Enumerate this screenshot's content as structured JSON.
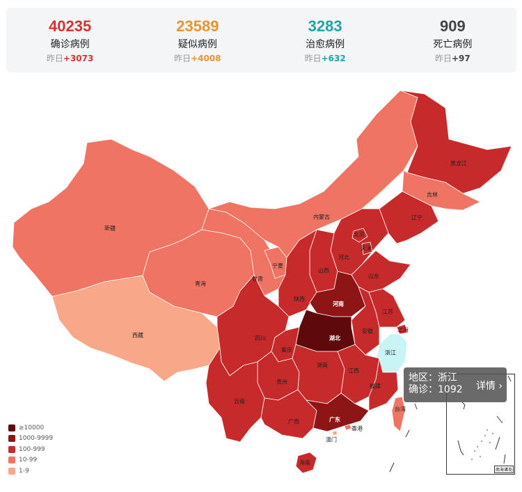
{
  "stats": [
    {
      "key": "confirmed",
      "value": "40235",
      "label": "确诊病例",
      "delta_prefix": "昨日",
      "delta": "+3073",
      "color": "#d4342f"
    },
    {
      "key": "suspected",
      "value": "23589",
      "label": "疑似病例",
      "delta_prefix": "昨日",
      "delta": "+4008",
      "color": "#e7952f"
    },
    {
      "key": "cured",
      "value": "3283",
      "label": "治愈病例",
      "delta_prefix": "昨日",
      "delta": "+632",
      "color": "#1fa3a3"
    },
    {
      "key": "dead",
      "value": "909",
      "label": "死亡病例",
      "delta_prefix": "昨日",
      "delta": "+97",
      "color": "#333333"
    }
  ],
  "legend": [
    {
      "label": "≥10000",
      "color": "#5e0a0a"
    },
    {
      "label": "1000-9999",
      "color": "#8e1515"
    },
    {
      "label": "100-999",
      "color": "#c62a2a"
    },
    {
      "label": "10-99",
      "color": "#f07463"
    },
    {
      "label": "1-9",
      "color": "#f8a888"
    }
  ],
  "provinces": [
    {
      "name": "黑龙江",
      "level": "100-999"
    },
    {
      "name": "吉林",
      "level": "10-99"
    },
    {
      "name": "辽宁",
      "level": "100-999"
    },
    {
      "name": "内蒙古",
      "level": "10-99"
    },
    {
      "name": "北京",
      "level": "100-999"
    },
    {
      "name": "天津",
      "level": "100-999"
    },
    {
      "name": "河北",
      "level": "100-999"
    },
    {
      "name": "山西",
      "level": "100-999"
    },
    {
      "name": "山东",
      "level": "100-999"
    },
    {
      "name": "宁夏",
      "level": "10-99"
    },
    {
      "name": "甘肃",
      "level": "10-99"
    },
    {
      "name": "新疆",
      "level": "10-99"
    },
    {
      "name": "青海",
      "level": "10-99"
    },
    {
      "name": "西藏",
      "level": "1-9"
    },
    {
      "name": "陕西",
      "level": "100-999"
    },
    {
      "name": "河南",
      "level": "1000-9999"
    },
    {
      "name": "江苏",
      "level": "100-999"
    },
    {
      "name": "上海",
      "level": "100-999"
    },
    {
      "name": "安徽",
      "level": "100-999"
    },
    {
      "name": "湖北",
      "level": "≥10000"
    },
    {
      "name": "四川",
      "level": "100-999"
    },
    {
      "name": "重庆",
      "level": "100-999"
    },
    {
      "name": "浙江",
      "level": "selected"
    },
    {
      "name": "湖南",
      "level": "100-999"
    },
    {
      "name": "江西",
      "level": "100-999"
    },
    {
      "name": "贵州",
      "level": "100-999"
    },
    {
      "name": "福建",
      "level": "100-999"
    },
    {
      "name": "云南",
      "level": "100-999"
    },
    {
      "name": "台湾",
      "level": "10-99"
    },
    {
      "name": "广西",
      "level": "100-999"
    },
    {
      "name": "广东",
      "level": "1000-9999"
    },
    {
      "name": "香港",
      "level": "10-99"
    },
    {
      "name": "澳门",
      "level": "1-9"
    },
    {
      "name": "海南",
      "level": "100-999"
    }
  ],
  "tooltip": {
    "region_label": "地区：浙江",
    "confirmed_label": "确诊：1092",
    "detail_label": "详情 ›"
  },
  "inset_caption": "南海诸岛"
}
